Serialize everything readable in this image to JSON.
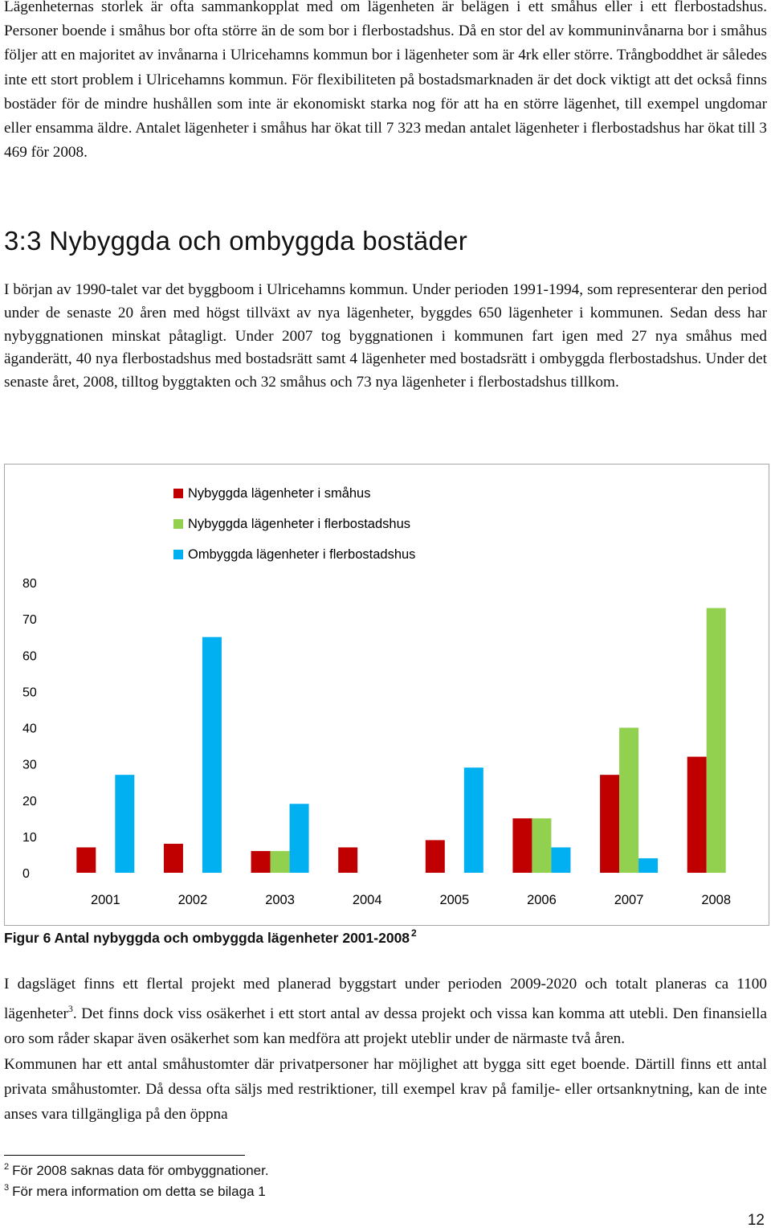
{
  "body": {
    "paragraph1": "Lägenheternas storlek är ofta sammankopplat med om lägenheten är belägen i ett småhus eller i ett flerbostadshus. Personer boende i småhus bor ofta större än de som bor i flerbostadshus. Då en stor del av kommuninvånarna bor i småhus följer att en majoritet av invånarna i Ulricehamns kommun bor i lägenheter som är 4rk eller större. Trångboddhet är således inte ett stort problem i Ulricehamns kommun. För flexibiliteten på bostadsmarknaden är det dock viktigt att det också finns bostäder för de mindre hushållen som inte är ekonomiskt starka nog för att ha en större lägenhet, till exempel ungdomar eller ensamma äldre. Antalet lägenheter i småhus har ökat till 7 323 medan antalet lägenheter i flerbostadshus har ökat till 3 469 för 2008.",
    "heading": "3:3 Nybyggda och ombyggda bostäder",
    "paragraph2": "I början av 1990-talet var det byggboom i Ulricehamns kommun. Under perioden 1991-1994, som representerar den period under de senaste 20 åren med högst tillväxt av nya lägenheter, byggdes 650 lägenheter i kommunen. Sedan dess har nybyggnationen minskat påtagligt. Under 2007 tog byggnationen i kommunen fart igen med 27 nya småhus med äganderätt, 40 nya flerbostadshus med bostadsrätt samt 4 lägenheter med bostadsrätt i ombyggda flerbostadshus. Under det senaste året, 2008, tilltog byggtakten och 32 småhus och 73 nya lägenheter i flerbostadshus tillkom.",
    "paragraph3_part1": "I dagsläget finns ett flertal projekt med planerad byggstart under perioden 2009-2020 och totalt planeras ca 1100 lägenheter",
    "paragraph3_sup": "3",
    "paragraph3_part2": ". Det finns dock viss osäkerhet i ett stort antal av dessa projekt och vissa kan komma att utebli. Den finansiella oro som råder skapar även osäkerhet som kan medföra att projekt uteblir under de närmaste två åren.",
    "paragraph4": "Kommunen har ett antal småhustomter där privatpersoner har möjlighet att bygga sitt eget boende. Därtill finns ett antal privata småhustomter. Då dessa ofta säljs med restriktioner, till exempel krav på familje- eller ortsanknytning, kan de inte anses vara tillgängliga på den öppna"
  },
  "figure": {
    "caption": "Figur 6 Antal nybyggda och ombyggda lägenheter 2001-2008",
    "caption_sup": "2"
  },
  "footnotes": [
    {
      "num": "2",
      "text": "För 2008 saknas data för ombyggnationer."
    },
    {
      "num": "3",
      "text": "För mera information om detta se bilaga 1"
    }
  ],
  "page_number": "12",
  "chart_data": {
    "type": "bar",
    "categories": [
      "2001",
      "2002",
      "2003",
      "2004",
      "2005",
      "2006",
      "2007",
      "2008"
    ],
    "series": [
      {
        "name": "Nybyggda lägenheter i småhus",
        "color": "#c00000",
        "values": [
          7,
          8,
          6,
          7,
          9,
          15,
          27,
          32
        ]
      },
      {
        "name": "Nybyggda lägenheter i flerbostadshus",
        "color": "#92d050",
        "values": [
          0,
          0,
          6,
          0,
          0,
          15,
          40,
          73
        ]
      },
      {
        "name": "Ombyggda lägenheter i flerbostadshus",
        "color": "#00b0f0",
        "values": [
          27,
          65,
          19,
          0,
          29,
          7,
          4,
          0
        ]
      }
    ],
    "yticks": [
      "0",
      "10",
      "20",
      "30",
      "40",
      "50",
      "60",
      "70",
      "80"
    ],
    "ylim": [
      0,
      80
    ],
    "grid": false,
    "legend_position": "top"
  }
}
